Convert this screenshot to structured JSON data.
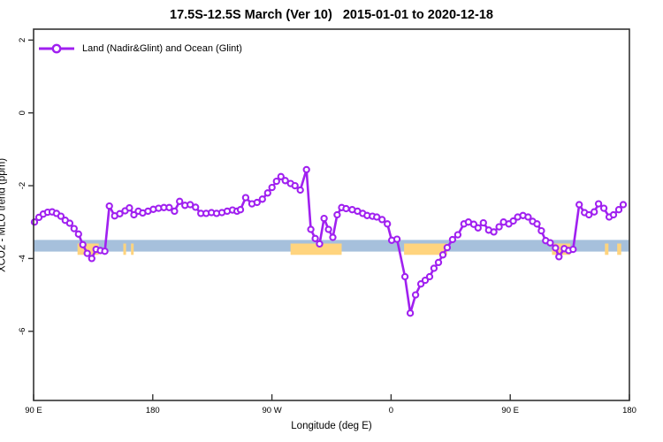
{
  "colors": {
    "line": "#A020F0",
    "marker_fill": "#FFFFFF",
    "ocean_band": "#A6C0DC",
    "land_band": "#FFD47E",
    "frame": "#333333",
    "text": "#000000"
  },
  "legend": {
    "label": "Land (Nadir&Glint) and Ocean (Glint)"
  },
  "chart_data": {
    "type": "line",
    "title": "17.5S-12.5S March (Ver 10)   2015-01-01 to 2020-12-18",
    "xlabel": "Longitude (deg E)",
    "ylabel": "XCO2 - MLO trend (ppm)",
    "xlim": [
      90,
      540
    ],
    "ylim": [
      -7.9,
      2.3
    ],
    "grid": false,
    "legend_position": "top-left",
    "xticks": [
      {
        "value": 90,
        "label": "90 E"
      },
      {
        "value": 180,
        "label": "180"
      },
      {
        "value": 270,
        "label": "90 W"
      },
      {
        "value": 360,
        "label": "0"
      },
      {
        "value": 450,
        "label": "90 E"
      },
      {
        "value": 540,
        "label": "180"
      }
    ],
    "yticks": [
      {
        "value": 2,
        "label": "2"
      },
      {
        "value": 0,
        "label": "0"
      },
      {
        "value": -2,
        "label": "-2"
      },
      {
        "value": -4,
        "label": "-4"
      },
      {
        "value": -6,
        "label": "-6"
      }
    ],
    "bands": [
      {
        "name": "ocean",
        "color": "#A6C0DC",
        "y_range": [
          -3.49,
          -3.81
        ],
        "segments": [
          [
            90,
            539.5
          ]
        ]
      },
      {
        "name": "land",
        "color": "#FFD47E",
        "y_range": [
          -3.59,
          -3.9
        ],
        "segments": [
          [
            123.2,
            139.2
          ],
          [
            157.8,
            159.9
          ],
          [
            163.6,
            165.6
          ],
          [
            284.1,
            322.7
          ],
          [
            369.8,
            402.4
          ],
          [
            481.5,
            495.4
          ],
          [
            521.5,
            524.2
          ],
          [
            530.8,
            533.8
          ]
        ]
      }
    ],
    "series": [
      {
        "name": "Land (Nadir&Glint) and Ocean (Glint)",
        "color": "#A020F0",
        "marker": "open-circle",
        "marker_fill": "#FFFFFF",
        "points": [
          [
            90.7,
            -3.0
          ],
          [
            94.0,
            -2.87
          ],
          [
            97.3,
            -2.78
          ],
          [
            100.6,
            -2.73
          ],
          [
            104.0,
            -2.72
          ],
          [
            107.3,
            -2.76
          ],
          [
            110.6,
            -2.84
          ],
          [
            113.9,
            -2.95
          ],
          [
            117.3,
            -3.03
          ],
          [
            120.6,
            -3.18
          ],
          [
            123.9,
            -3.33
          ],
          [
            127.2,
            -3.62
          ],
          [
            130.5,
            -3.86
          ],
          [
            133.9,
            -4.0
          ],
          [
            137.2,
            -3.75
          ],
          [
            140.5,
            -3.78
          ],
          [
            143.8,
            -3.8
          ],
          [
            147.2,
            -2.56
          ],
          [
            151.2,
            -2.83
          ],
          [
            155.1,
            -2.77
          ],
          [
            159.1,
            -2.69
          ],
          [
            162.4,
            -2.61
          ],
          [
            165.8,
            -2.8
          ],
          [
            169.1,
            -2.7
          ],
          [
            172.4,
            -2.75
          ],
          [
            176.4,
            -2.7
          ],
          [
            180.4,
            -2.65
          ],
          [
            184.4,
            -2.62
          ],
          [
            188.4,
            -2.6
          ],
          [
            192.4,
            -2.6
          ],
          [
            196.4,
            -2.7
          ],
          [
            200.3,
            -2.43
          ],
          [
            204.3,
            -2.54
          ],
          [
            208.3,
            -2.52
          ],
          [
            212.3,
            -2.59
          ],
          [
            216.3,
            -2.76
          ],
          [
            220.3,
            -2.76
          ],
          [
            224.3,
            -2.74
          ],
          [
            228.2,
            -2.76
          ],
          [
            232.2,
            -2.74
          ],
          [
            236.2,
            -2.7
          ],
          [
            240.2,
            -2.67
          ],
          [
            243.6,
            -2.7
          ],
          [
            246.2,
            -2.66
          ],
          [
            250.2,
            -2.33
          ],
          [
            254.9,
            -2.5
          ],
          [
            258.8,
            -2.46
          ],
          [
            262.8,
            -2.37
          ],
          [
            266.8,
            -2.2
          ],
          [
            270.1,
            -2.05
          ],
          [
            273.5,
            -1.88
          ],
          [
            276.8,
            -1.75
          ],
          [
            280.1,
            -1.86
          ],
          [
            284.1,
            -1.94
          ],
          [
            287.4,
            -2.0
          ],
          [
            291.4,
            -2.12
          ],
          [
            296.1,
            -1.56
          ],
          [
            299.4,
            -3.2
          ],
          [
            302.7,
            -3.45
          ],
          [
            306.0,
            -3.6
          ],
          [
            309.4,
            -2.9
          ],
          [
            312.7,
            -3.2
          ],
          [
            316.0,
            -3.42
          ],
          [
            319.3,
            -2.8
          ],
          [
            322.7,
            -2.6
          ],
          [
            326.0,
            -2.63
          ],
          [
            330.6,
            -2.66
          ],
          [
            334.6,
            -2.7
          ],
          [
            338.6,
            -2.76
          ],
          [
            341.9,
            -2.82
          ],
          [
            345.9,
            -2.84
          ],
          [
            349.2,
            -2.86
          ],
          [
            353.2,
            -2.93
          ],
          [
            357.2,
            -3.05
          ],
          [
            360.5,
            -3.5
          ],
          [
            364.5,
            -3.47
          ],
          [
            370.5,
            -4.5
          ],
          [
            374.5,
            -5.5
          ],
          [
            378.5,
            -5.0
          ],
          [
            382.5,
            -4.7
          ],
          [
            385.8,
            -4.6
          ],
          [
            389.1,
            -4.5
          ],
          [
            392.4,
            -4.27
          ],
          [
            395.8,
            -4.11
          ],
          [
            399.1,
            -3.9
          ],
          [
            402.4,
            -3.7
          ],
          [
            406.4,
            -3.48
          ],
          [
            410.4,
            -3.35
          ],
          [
            415.0,
            -3.05
          ],
          [
            418.4,
            -3.0
          ],
          [
            422.4,
            -3.06
          ],
          [
            425.7,
            -3.16
          ],
          [
            429.7,
            -3.02
          ],
          [
            433.7,
            -3.22
          ],
          [
            437.6,
            -3.27
          ],
          [
            441.6,
            -3.13
          ],
          [
            444.9,
            -3.0
          ],
          [
            448.9,
            -3.05
          ],
          [
            452.3,
            -2.97
          ],
          [
            455.6,
            -2.86
          ],
          [
            459.6,
            -2.82
          ],
          [
            463.5,
            -2.86
          ],
          [
            466.9,
            -2.98
          ],
          [
            470.2,
            -3.05
          ],
          [
            473.5,
            -3.24
          ],
          [
            476.8,
            -3.51
          ],
          [
            480.2,
            -3.57
          ],
          [
            484.2,
            -3.71
          ],
          [
            486.8,
            -3.95
          ],
          [
            490.8,
            -3.73
          ],
          [
            494.1,
            -3.78
          ],
          [
            497.5,
            -3.75
          ],
          [
            502.1,
            -2.52
          ],
          [
            506.1,
            -2.74
          ],
          [
            509.4,
            -2.8
          ],
          [
            513.4,
            -2.72
          ],
          [
            516.7,
            -2.5
          ],
          [
            520.7,
            -2.62
          ],
          [
            524.7,
            -2.86
          ],
          [
            528.0,
            -2.8
          ],
          [
            532.0,
            -2.66
          ],
          [
            535.3,
            -2.52
          ]
        ]
      }
    ]
  }
}
